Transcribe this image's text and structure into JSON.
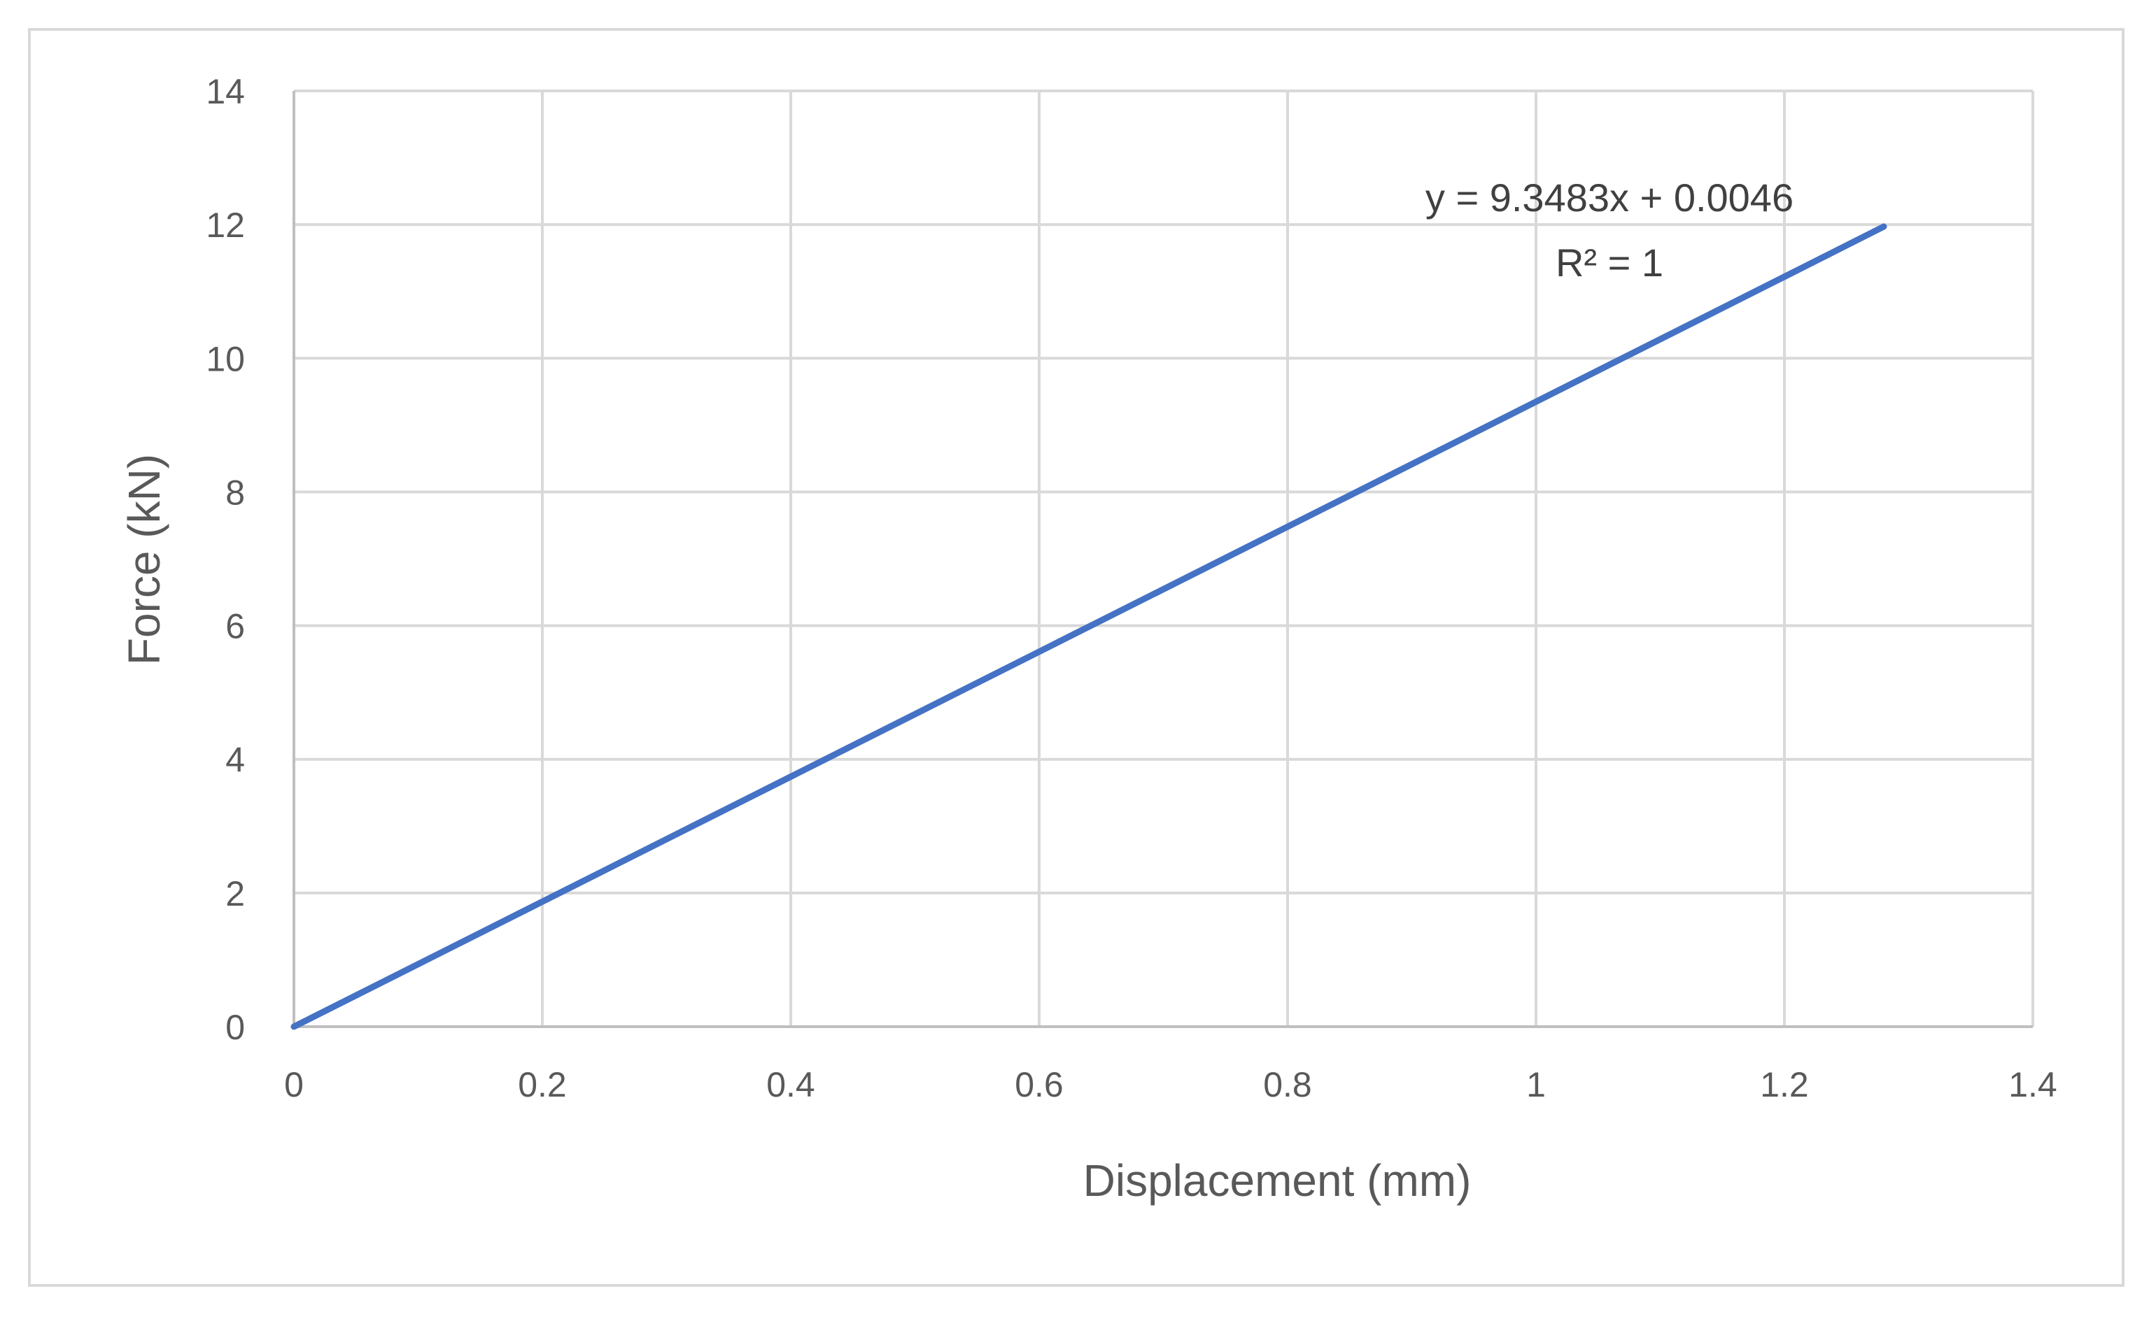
{
  "chart_data": {
    "type": "line",
    "title": "",
    "xlabel": "Displacement (mm)",
    "ylabel": "Force (kN)",
    "xlim": [
      0,
      1.4
    ],
    "ylim": [
      0,
      14
    ],
    "x_ticks": [
      "0",
      "0.2",
      "0.4",
      "0.6",
      "0.8",
      "1",
      "1.2",
      "1.4"
    ],
    "y_ticks": [
      "0",
      "2",
      "4",
      "6",
      "8",
      "10",
      "12",
      "14"
    ],
    "grid": true,
    "legend": "none",
    "series": [
      {
        "color": "#4472c4",
        "x": [
          0,
          0.2,
          0.4,
          0.6,
          0.8,
          1.0,
          1.2,
          1.28
        ],
        "y": [
          0,
          1.87,
          3.74,
          5.61,
          7.48,
          9.35,
          11.22,
          11.97
        ]
      }
    ],
    "trendline": {
      "equation": "y = 9.3483x + 0.0046",
      "r_squared": "R² = 1",
      "slope": 9.3483,
      "intercept": 0.0046
    },
    "colors": {
      "grid": "#d9d9d9",
      "axis": "#bfbfbf",
      "text": "#595959"
    }
  }
}
